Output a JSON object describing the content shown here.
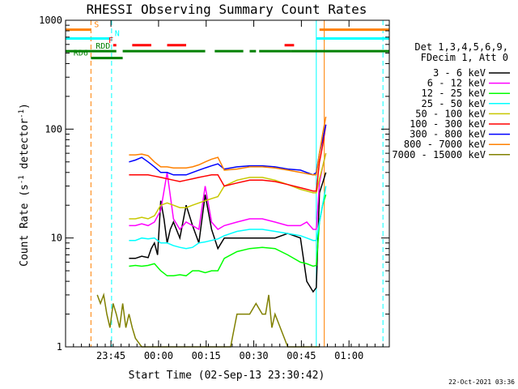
{
  "chart_data": {
    "type": "line",
    "title": "RHESSI Observing Summary Count Rates",
    "xlabel": "Start Time (02-Sep-13 23:30:42)",
    "ylabel": "Count Rate (s^-1 detector^-1)",
    "ylabel_base": "Count Rate (s",
    "ylabel_sup1": "-1",
    "ylabel_mid": " detector",
    "ylabel_sup2": "-1",
    "ylabel_end": ")",
    "x_unit": "minutes after 23:30:42 UT",
    "xlim": [
      0,
      102
    ],
    "ylim": [
      1,
      1000
    ],
    "yscale": "log",
    "x_ticks": [
      {
        "label": "23:45",
        "x": 14.3
      },
      {
        "label": "00:00",
        "x": 29.3
      },
      {
        "label": "00:15",
        "x": 44.3
      },
      {
        "label": "00:30",
        "x": 59.3
      },
      {
        "label": "00:45",
        "x": 74.3
      },
      {
        "label": "01:00",
        "x": 89.3
      }
    ],
    "y_ticks": [
      {
        "label": "1",
        "y": 1
      },
      {
        "label": "10",
        "y": 10
      },
      {
        "label": "100",
        "y": 100
      },
      {
        "label": "1000",
        "y": 1000
      }
    ],
    "legend_title": [
      "Det 1,3,4,5,6,9,",
      "FDecim 1, Att 0"
    ],
    "legend_position": "right",
    "series": [
      {
        "name": "3 - 6 keV",
        "color": "#000000",
        "x": [
          20,
          22,
          24,
          26,
          27,
          28,
          29,
          30,
          31,
          32,
          33,
          34,
          36,
          38,
          40,
          42,
          44,
          46,
          48,
          50,
          54,
          58,
          62,
          66,
          70,
          74,
          76,
          78,
          79,
          80,
          81,
          82
        ],
        "y": [
          6.5,
          6.5,
          6.8,
          6.6,
          8,
          9,
          7,
          22,
          15,
          9,
          12,
          14,
          10,
          20,
          13,
          9,
          25,
          12,
          8,
          10,
          10,
          10,
          10,
          10,
          11,
          10,
          4,
          3.2,
          3.5,
          26,
          32,
          40
        ]
      },
      {
        "name": "6 - 12 keV",
        "color": "#ff00ff",
        "x": [
          20,
          22,
          24,
          26,
          28,
          30,
          32,
          34,
          36,
          38,
          40,
          42,
          44,
          46,
          48,
          50,
          54,
          58,
          62,
          66,
          70,
          74,
          76,
          78,
          79,
          80,
          81,
          82
        ],
        "y": [
          13,
          13,
          13.5,
          13,
          14,
          18,
          40,
          15,
          12,
          14,
          13,
          12,
          30,
          14,
          12,
          13,
          14,
          15,
          15,
          14,
          13,
          13,
          14,
          12,
          12,
          32,
          45,
          60
        ]
      },
      {
        "name": "12 - 25 keV",
        "color": "#00ff00",
        "x": [
          20,
          22,
          24,
          26,
          28,
          30,
          32,
          34,
          36,
          38,
          40,
          42,
          44,
          46,
          48,
          50,
          54,
          58,
          62,
          66,
          70,
          74,
          76,
          78,
          79,
          80,
          81,
          82
        ],
        "y": [
          5.5,
          5.6,
          5.5,
          5.6,
          5.8,
          5,
          4.5,
          4.5,
          4.6,
          4.5,
          5,
          5,
          4.8,
          5,
          5,
          6.5,
          7.5,
          8,
          8.2,
          8,
          7,
          6,
          5.8,
          5.5,
          5.6,
          14,
          20,
          25
        ]
      },
      {
        "name": "25 - 50 keV",
        "color": "#00ffff",
        "x": [
          20,
          22,
          24,
          26,
          28,
          30,
          32,
          34,
          36,
          38,
          40,
          42,
          44,
          46,
          48,
          50,
          54,
          58,
          62,
          66,
          70,
          74,
          76,
          78,
          79,
          80,
          81,
          82
        ],
        "y": [
          9.5,
          9.5,
          10,
          9.8,
          10,
          9,
          9,
          8.5,
          8.2,
          8,
          8.2,
          9,
          9.2,
          9.5,
          9.8,
          10.5,
          11.5,
          12,
          12,
          11.5,
          11,
          10.5,
          10,
          9.5,
          9.5,
          14,
          20,
          30
        ]
      },
      {
        "name": "50 - 100 keV",
        "color": "#c8c800",
        "x": [
          20,
          22,
          24,
          26,
          28,
          30,
          32,
          34,
          36,
          38,
          40,
          42,
          44,
          46,
          48,
          50,
          54,
          58,
          62,
          66,
          70,
          74,
          76,
          78,
          79,
          80,
          81,
          82
        ],
        "y": [
          15,
          15,
          15.5,
          15,
          16,
          20,
          21,
          20,
          19,
          19,
          20,
          21,
          22,
          23,
          24,
          30,
          34,
          36,
          36,
          34,
          31,
          28,
          27,
          26,
          26,
          35,
          45,
          60
        ]
      },
      {
        "name": "100 - 300 keV",
        "color": "#ff0000",
        "x": [
          20,
          22,
          24,
          26,
          28,
          30,
          32,
          34,
          36,
          38,
          40,
          42,
          44,
          46,
          48,
          50,
          54,
          58,
          62,
          66,
          70,
          74,
          76,
          78,
          79,
          80,
          81,
          82
        ],
        "y": [
          38,
          38,
          38,
          38,
          37,
          36,
          35,
          34,
          33,
          34,
          35,
          36,
          37,
          38,
          38,
          30,
          32,
          34,
          34,
          33,
          31,
          29,
          28,
          27,
          27,
          50,
          70,
          110
        ]
      },
      {
        "name": "300 - 800 keV",
        "color": "#0000ff",
        "x": [
          20,
          22,
          24,
          26,
          28,
          30,
          32,
          34,
          36,
          38,
          40,
          42,
          44,
          46,
          48,
          50,
          54,
          58,
          62,
          66,
          70,
          74,
          76,
          78,
          79,
          80,
          81,
          82
        ],
        "y": [
          50,
          52,
          55,
          50,
          45,
          40,
          40,
          38,
          38,
          38,
          40,
          42,
          44,
          46,
          48,
          43,
          45,
          46,
          46,
          45,
          43,
          42,
          40,
          38,
          40,
          60,
          80,
          110
        ]
      },
      {
        "name": "800 - 7000 keV",
        "color": "#ff8000",
        "x": [
          20,
          22,
          24,
          26,
          28,
          30,
          32,
          34,
          36,
          38,
          40,
          42,
          44,
          46,
          48,
          50,
          54,
          58,
          62,
          66,
          70,
          74,
          76,
          78,
          79,
          80,
          81,
          82
        ],
        "y": [
          58,
          58,
          59,
          57,
          50,
          45,
          45,
          44,
          44,
          44,
          45,
          47,
          50,
          53,
          55,
          42,
          43,
          45,
          45,
          44,
          42,
          40,
          39,
          38,
          38,
          60,
          90,
          130
        ]
      },
      {
        "name": "7000 - 15000 keV",
        "color": "#808000",
        "x": [
          10,
          11,
          12,
          13,
          14,
          15,
          16,
          17,
          18,
          19,
          20,
          21,
          22,
          24,
          26,
          30,
          36,
          42,
          45,
          46,
          48,
          50,
          52,
          54,
          56,
          58,
          60,
          62,
          63,
          64,
          65,
          66,
          70,
          74,
          76,
          77,
          78,
          79,
          80
        ],
        "y": [
          3,
          2.5,
          3,
          2,
          1.5,
          2.5,
          2,
          1.5,
          2.5,
          1.5,
          2,
          1.5,
          1.2,
          1,
          1,
          1,
          1,
          1,
          1,
          1,
          1,
          1,
          1,
          2,
          2,
          2,
          2.5,
          2,
          2,
          3,
          1.5,
          2,
          1,
          1,
          1,
          1,
          1,
          1,
          1
        ]
      }
    ],
    "state_bars": [
      {
        "label": "S",
        "color": "#ff8000",
        "label_x": 9,
        "segments": [
          [
            0,
            8
          ],
          [
            80,
            102
          ]
        ],
        "level": 820
      },
      {
        "label": "N",
        "color": "#00ffff",
        "label_x": 15.5,
        "segments": [
          [
            0,
            14
          ],
          [
            79,
            102
          ]
        ],
        "level": 680
      },
      {
        "label": "F",
        "color": "#ff0000",
        "label_x": 13.5,
        "segments": [
          [
            15,
            16
          ],
          [
            21,
            27
          ],
          [
            32,
            38
          ],
          [
            69,
            72
          ]
        ],
        "level": 590
      },
      {
        "label": "RDD",
        "color": "#008000",
        "label_x": 9.5,
        "segments": [
          [
            0,
            16
          ],
          [
            18,
            44
          ],
          [
            47,
            56
          ],
          [
            58,
            60
          ],
          [
            61,
            71
          ],
          [
            71,
            102
          ]
        ],
        "level": 520
      },
      {
        "label": "RD6",
        "color": "#008000",
        "label_x": 2.5,
        "segments": [
          [
            8,
            18
          ]
        ],
        "level": 450
      }
    ],
    "vertical_lines": [
      {
        "x": 0,
        "color": "#00ffff",
        "style": "solid"
      },
      {
        "x": 8,
        "color": "#ff8000",
        "style": "dashed"
      },
      {
        "x": 14.5,
        "color": "#00ffff",
        "style": "dashed"
      },
      {
        "x": 79,
        "color": "#00ffff",
        "style": "solid"
      },
      {
        "x": 81.5,
        "color": "#ff8000",
        "style": "solid"
      },
      {
        "x": 100,
        "color": "#00ffff",
        "style": "dashed"
      }
    ],
    "grid": false
  },
  "footer_timestamp": "22-Oct-2021 03:36"
}
